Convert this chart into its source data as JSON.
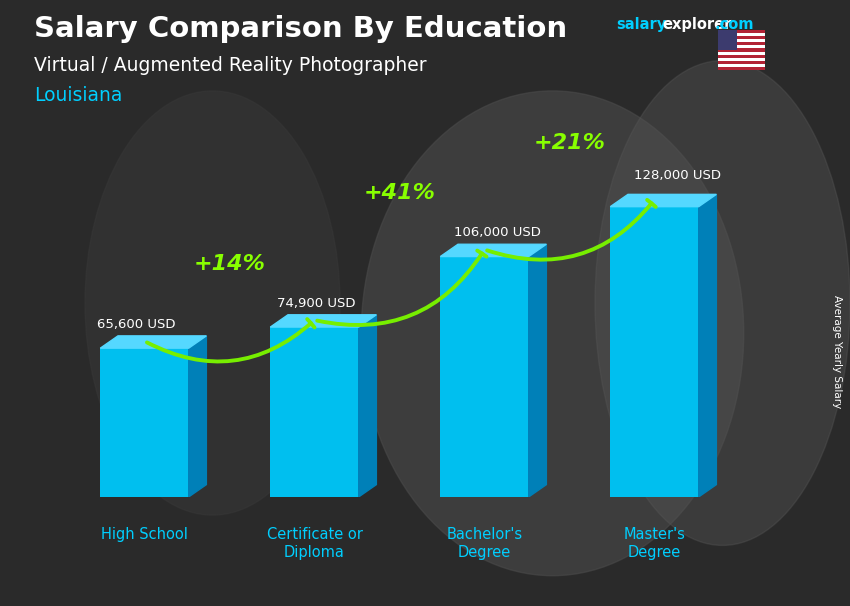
{
  "title": "Salary Comparison By Education",
  "subtitle": "Virtual / Augmented Reality Photographer",
  "location": "Louisiana",
  "ylabel": "Average Yearly Salary",
  "categories": [
    "High School",
    "Certificate or\nDiploma",
    "Bachelor's\nDegree",
    "Master's\nDegree"
  ],
  "values": [
    65600,
    74900,
    106000,
    128000
  ],
  "value_labels": [
    "65,600 USD",
    "74,900 USD",
    "106,000 USD",
    "128,000 USD"
  ],
  "pct_changes": [
    "+14%",
    "+41%",
    "+21%"
  ],
  "front_color": "#00bfef",
  "top_color": "#55d8ff",
  "side_color": "#0080b8",
  "arrow_color": "#77ee00",
  "pct_color": "#88ff00",
  "title_color": "#ffffff",
  "subtitle_color": "#ffffff",
  "location_color": "#00cfff",
  "value_color": "#ffffff",
  "xlabel_color": "#00cfff",
  "bg_color": "#2a2a2a",
  "brand_salary": "salary",
  "brand_explorer": "explorer",
  "brand_com": ".com",
  "brand_color_salary": "#00cfff",
  "brand_color_explorer": "#ffffff",
  "brand_color_com": "#00cfff",
  "ylim": [
    0,
    155000
  ],
  "figwidth": 8.5,
  "figheight": 6.06,
  "bar_width": 0.52
}
